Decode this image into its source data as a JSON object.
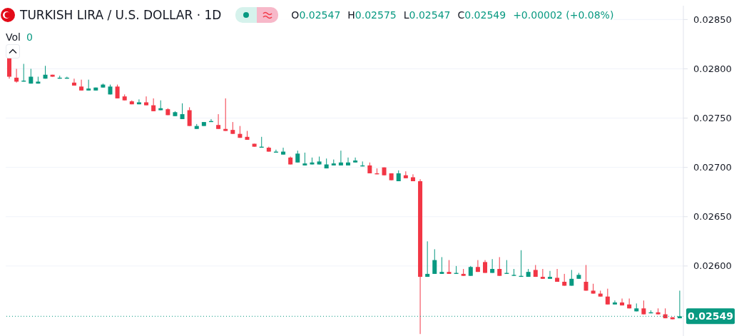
{
  "chart_data": {
    "type": "candlestick",
    "title": "TURKISH LIRA / U.S. DOLLAR · 1D",
    "annotations": [
      "O",
      "0.02547",
      "H",
      "0.02575",
      "L",
      "0.02547",
      "C",
      "0.02549",
      "+0.00002 (+0.08%)",
      "Vol",
      "0"
    ],
    "categories": [
      null,
      null,
      null,
      null,
      null,
      null,
      null,
      null,
      null,
      null,
      null,
      null,
      null,
      null,
      null,
      null,
      null,
      null,
      null,
      null,
      null,
      null,
      null,
      null,
      null,
      null,
      null,
      null,
      null,
      null,
      null,
      null,
      null,
      null,
      null,
      null,
      null,
      null,
      null,
      null,
      null,
      null,
      null,
      null,
      null,
      null,
      null,
      null,
      null,
      null,
      null,
      null,
      null,
      null,
      null,
      null,
      null,
      null,
      null,
      null,
      null,
      null,
      null,
      null,
      null,
      null,
      null,
      null,
      null,
      null,
      null,
      null,
      null,
      null,
      null,
      null,
      null,
      null,
      null,
      null,
      null,
      null,
      null,
      null,
      null,
      null,
      null,
      null,
      null,
      null,
      null,
      null,
      null,
      null
    ],
    "ohlc": [
      [
        0.02811,
        0.02812,
        0.0279,
        0.02792
      ],
      [
        0.02791,
        0.028,
        0.02786,
        0.02787
      ],
      [
        0.02787,
        0.02805,
        0.02787,
        0.02788
      ],
      [
        0.02785,
        0.028,
        0.02785,
        0.02792
      ],
      [
        0.02785,
        0.02792,
        0.02785,
        0.02787
      ],
      [
        0.0279,
        0.02803,
        0.0279,
        0.02794
      ],
      [
        0.02794,
        0.02794,
        0.02792,
        0.02792
      ],
      [
        0.0279,
        0.02793,
        0.0279,
        0.02791
      ],
      [
        0.0279,
        0.02792,
        0.0279,
        0.02791
      ],
      [
        0.02786,
        0.0279,
        0.02783,
        0.02783
      ],
      [
        0.02782,
        0.02789,
        0.02778,
        0.02778
      ],
      [
        0.02778,
        0.02789,
        0.02778,
        0.0278
      ],
      [
        0.02778,
        0.02781,
        0.02778,
        0.02781
      ],
      [
        0.02781,
        0.02785,
        0.02781,
        0.02784
      ],
      [
        0.02774,
        0.02784,
        0.02774,
        0.02782
      ],
      [
        0.02782,
        0.02784,
        0.0277,
        0.0277
      ],
      [
        0.02772,
        0.02774,
        0.02768,
        0.02768
      ],
      [
        0.02767,
        0.02768,
        0.02764,
        0.02764
      ],
      [
        0.02764,
        0.02769,
        0.02764,
        0.02766
      ],
      [
        0.02766,
        0.02772,
        0.02763,
        0.02763
      ],
      [
        0.02763,
        0.0277,
        0.02757,
        0.02757
      ],
      [
        0.02758,
        0.02768,
        0.02758,
        0.0276
      ],
      [
        0.02759,
        0.0276,
        0.02753,
        0.02753
      ],
      [
        0.02752,
        0.02757,
        0.02752,
        0.02756
      ],
      [
        0.02749,
        0.02765,
        0.02749,
        0.02754
      ],
      [
        0.02758,
        0.02761,
        0.02742,
        0.02742
      ],
      [
        0.02739,
        0.02744,
        0.02739,
        0.02742
      ],
      [
        0.02742,
        0.02746,
        0.02742,
        0.02746
      ],
      [
        0.02746,
        0.02749,
        0.02746,
        0.02747
      ],
      [
        0.02743,
        0.02754,
        0.02739,
        0.02739
      ],
      [
        0.02739,
        0.0277,
        0.02737,
        0.02737
      ],
      [
        0.02738,
        0.02746,
        0.02734,
        0.02734
      ],
      [
        0.02734,
        0.02742,
        0.0273,
        0.0273
      ],
      [
        0.02731,
        0.02737,
        0.02728,
        0.02728
      ],
      [
        0.02724,
        0.02724,
        0.02721,
        0.02721
      ],
      [
        0.0272,
        0.02731,
        0.0272,
        0.02721
      ],
      [
        0.0272,
        0.02721,
        0.02716,
        0.02716
      ],
      [
        0.02715,
        0.02718,
        0.02715,
        0.02716
      ],
      [
        0.02713,
        0.0272,
        0.02713,
        0.02716
      ],
      [
        0.0271,
        0.02711,
        0.02703,
        0.02703
      ],
      [
        0.02705,
        0.02717,
        0.02705,
        0.02714
      ],
      [
        0.02702,
        0.02715,
        0.02702,
        0.02704
      ],
      [
        0.02703,
        0.0271,
        0.02703,
        0.02705
      ],
      [
        0.02703,
        0.02711,
        0.02703,
        0.02706
      ],
      [
        0.02699,
        0.02709,
        0.02699,
        0.02703
      ],
      [
        0.02702,
        0.02708,
        0.02702,
        0.02704
      ],
      [
        0.02702,
        0.02717,
        0.02702,
        0.02705
      ],
      [
        0.02702,
        0.0271,
        0.02702,
        0.02705
      ],
      [
        0.02705,
        0.0271,
        0.02705,
        0.02707
      ],
      [
        0.02701,
        0.02706,
        0.02701,
        0.02702
      ],
      [
        0.02702,
        0.02705,
        0.02694,
        0.02694
      ],
      [
        0.02694,
        0.02699,
        0.02693,
        0.02693
      ],
      [
        0.027,
        0.027,
        0.02692,
        0.02692
      ],
      [
        0.02694,
        0.02694,
        0.02687,
        0.02687
      ],
      [
        0.02686,
        0.02697,
        0.02686,
        0.02694
      ],
      [
        0.02692,
        0.02696,
        0.02689,
        0.02689
      ],
      [
        0.0269,
        0.02693,
        0.02686,
        0.02686
      ],
      [
        0.02686,
        0.02688,
        0.02531,
        0.02589
      ],
      [
        0.02589,
        0.02625,
        0.02589,
        0.02592
      ],
      [
        0.02592,
        0.02617,
        0.02592,
        0.02606
      ],
      [
        0.02592,
        0.02609,
        0.02592,
        0.02594
      ],
      [
        0.02594,
        0.02606,
        0.02592,
        0.02592
      ],
      [
        0.02592,
        0.026,
        0.02592,
        0.02593
      ],
      [
        0.02592,
        0.02597,
        0.0259,
        0.0259
      ],
      [
        0.0259,
        0.026,
        0.0259,
        0.02599
      ],
      [
        0.02599,
        0.02606,
        0.02594,
        0.02594
      ],
      [
        0.02604,
        0.02606,
        0.02593,
        0.02593
      ],
      [
        0.02593,
        0.02607,
        0.02593,
        0.02597
      ],
      [
        0.02597,
        0.02609,
        0.0259,
        0.0259
      ],
      [
        0.02592,
        0.02606,
        0.02592,
        0.02593
      ],
      [
        0.0259,
        0.02597,
        0.0259,
        0.02591
      ],
      [
        0.02589,
        0.02616,
        0.02589,
        0.0259
      ],
      [
        0.02589,
        0.02597,
        0.02589,
        0.02594
      ],
      [
        0.02596,
        0.02601,
        0.02589,
        0.02589
      ],
      [
        0.02589,
        0.02597,
        0.02587,
        0.02587
      ],
      [
        0.02587,
        0.02595,
        0.02587,
        0.02589
      ],
      [
        0.02588,
        0.02597,
        0.02584,
        0.02584
      ],
      [
        0.02584,
        0.02592,
        0.0258,
        0.0258
      ],
      [
        0.0258,
        0.02596,
        0.0258,
        0.02587
      ],
      [
        0.02587,
        0.02593,
        0.02587,
        0.02591
      ],
      [
        0.02584,
        0.02601,
        0.02575,
        0.02575
      ],
      [
        0.02575,
        0.02582,
        0.02572,
        0.02572
      ],
      [
        0.02572,
        0.02575,
        0.02569,
        0.02569
      ],
      [
        0.02569,
        0.02577,
        0.02561,
        0.02561
      ],
      [
        0.02561,
        0.02565,
        0.02561,
        0.02563
      ],
      [
        0.02563,
        0.02567,
        0.0256,
        0.0256
      ],
      [
        0.02561,
        0.02567,
        0.02557,
        0.02557
      ],
      [
        0.02554,
        0.02562,
        0.02554,
        0.02557
      ],
      [
        0.02557,
        0.02565,
        0.02551,
        0.02551
      ],
      [
        0.02552,
        0.02555,
        0.02552,
        0.02553
      ],
      [
        0.02553,
        0.02557,
        0.02551,
        0.02551
      ],
      [
        0.02551,
        0.02557,
        0.02547,
        0.02547
      ],
      [
        0.02548,
        0.02548,
        0.02546,
        0.02546
      ],
      [
        0.02547,
        0.02575,
        0.02547,
        0.02549
      ]
    ],
    "ylim": [
      0.02529,
      0.02864
    ],
    "yticks": [
      {
        "value": 0.026,
        "label": "0.02600"
      },
      {
        "value": 0.0265,
        "label": "0.02650"
      },
      {
        "value": 0.027,
        "label": "0.02700"
      },
      {
        "value": 0.0275,
        "label": "0.02750"
      },
      {
        "value": 0.028,
        "label": "0.02800"
      },
      {
        "value": 0.0285,
        "label": "0.02850"
      }
    ],
    "grid": true,
    "tick_labels": "y",
    "ref_lines": [
      {
        "axis": "y",
        "value": 0.02549,
        "label": "0.02549",
        "color": "#089981",
        "line_style": "dotted"
      }
    ]
  }
}
